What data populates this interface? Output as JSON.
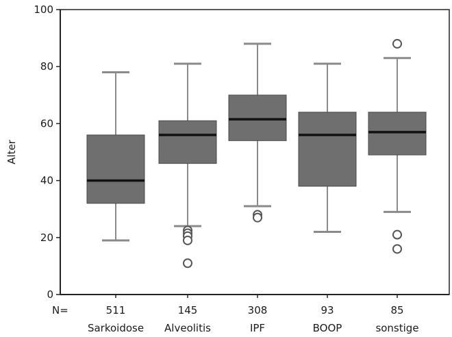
{
  "chart_data": {
    "type": "box",
    "title": "",
    "xlabel": "",
    "ylabel": "Alter",
    "ylim": [
      0,
      100
    ],
    "yticks": [
      0,
      20,
      40,
      60,
      80,
      100
    ],
    "n_prefix": "N=",
    "grid": false,
    "categories": [
      "Sarkoidose",
      "Alveolitis",
      "IPF",
      "BOOP",
      "sonstige"
    ],
    "n": [
      "511",
      "145",
      "308",
      "93",
      "85"
    ],
    "boxes": [
      {
        "whisker_low": 19,
        "q1": 32,
        "median": 40,
        "q3": 56,
        "whisker_high": 78,
        "outliers": []
      },
      {
        "whisker_low": 24,
        "q1": 46,
        "median": 56,
        "q3": 61,
        "whisker_high": 81,
        "outliers": [
          22.5,
          21.5,
          20.5,
          19,
          11
        ]
      },
      {
        "whisker_low": 31,
        "q1": 54,
        "median": 61.5,
        "q3": 70,
        "whisker_high": 88,
        "outliers": [
          28,
          27
        ]
      },
      {
        "whisker_low": 22,
        "q1": 38,
        "median": 56,
        "q3": 64,
        "whisker_high": 81,
        "outliers": []
      },
      {
        "whisker_low": 29,
        "q1": 49,
        "median": 57,
        "q3": 64,
        "whisker_high": 83,
        "outliers": [
          88,
          21,
          16
        ]
      }
    ],
    "colors": {
      "box_fill": "#6f6f6f",
      "median": "#111111",
      "whisker": "#8a8a8a",
      "axis": "#222222"
    }
  }
}
